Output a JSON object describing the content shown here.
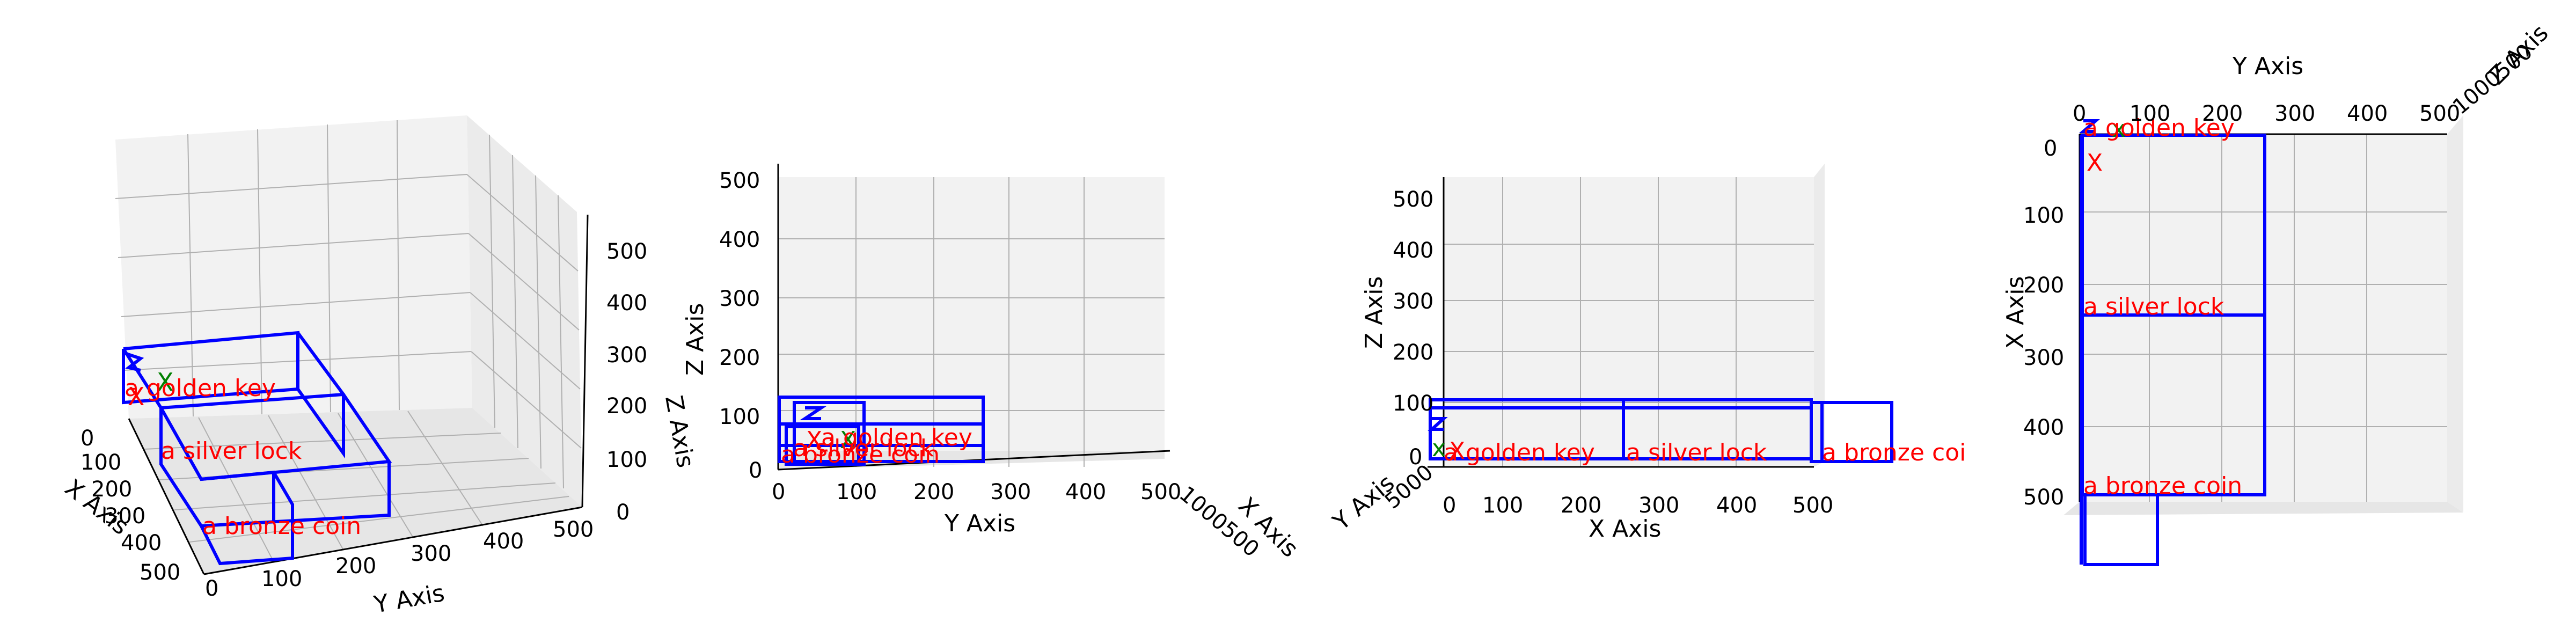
{
  "chart_data": [
    {
      "type": "scatter",
      "view": "perspective",
      "xlabel": "X Axis",
      "ylabel": "Y Axis",
      "zlabel": "Z Axis",
      "xticks": [
        "0",
        "100",
        "200",
        "300",
        "400",
        "500"
      ],
      "yticks": [
        "0",
        "100",
        "200",
        "300",
        "400",
        "500"
      ],
      "zticks": [
        "0",
        "100",
        "200",
        "300",
        "400",
        "500"
      ],
      "objects": [
        "a golden key",
        "a silver lock",
        "a bronze coin"
      ],
      "markers": [
        {
          "shape": "x",
          "color": "#008000"
        },
        {
          "shape": "x",
          "color": "#ff0000"
        }
      ],
      "grid": true
    },
    {
      "type": "scatter",
      "view": "front (Y-Z)",
      "xlabel": "Y Axis",
      "ylabel": "Z Axis",
      "zlabel": "X Axis",
      "xticks": [
        "0",
        "100",
        "200",
        "300",
        "400",
        "500"
      ],
      "yticks": [
        "0",
        "100",
        "200",
        "300",
        "400",
        "500"
      ],
      "objects": [
        "a golden key",
        "a silver lock",
        "a bronze coin"
      ],
      "grid": true
    },
    {
      "type": "scatter",
      "view": "side (X-Z)",
      "xlabel": "X Axis",
      "ylabel": "Z Axis",
      "zlabel": "Y Axis",
      "xticks": [
        "0",
        "100",
        "200",
        "300",
        "400",
        "500"
      ],
      "yticks": [
        "0",
        "100",
        "200",
        "300",
        "400",
        "500"
      ],
      "objects": [
        "a golden key",
        "a silver lock",
        "a bronze coi"
      ],
      "grid": true
    },
    {
      "type": "scatter",
      "view": "top (Y-X)",
      "xlabel": "Y Axis",
      "ylabel": "X Axis",
      "zlabel": "Z Axis",
      "xticks": [
        "0",
        "100",
        "200",
        "300",
        "400",
        "500"
      ],
      "yticks": [
        "0",
        "100",
        "200",
        "300",
        "400",
        "500"
      ],
      "objects": [
        "a golden key",
        "a silver lock",
        "a bronze coin"
      ],
      "grid": true
    }
  ],
  "colors": {
    "box": "#0000ff",
    "label": "#ff0000",
    "marker_green": "#008000",
    "marker_red": "#ff0000"
  }
}
